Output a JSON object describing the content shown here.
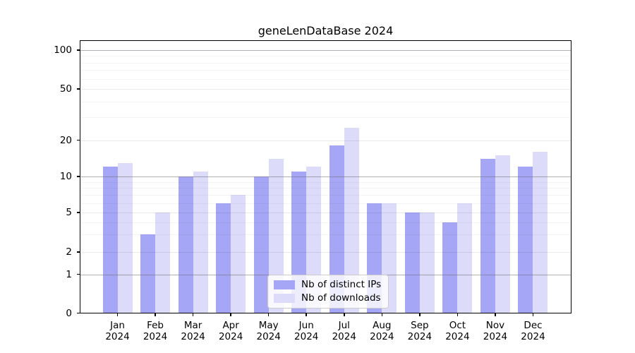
{
  "chart_data": {
    "type": "bar",
    "title": "geneLenDataBase 2024",
    "categories": [
      "Jan 2024",
      "Feb 2024",
      "Mar 2024",
      "Apr 2024",
      "May 2024",
      "Jun 2024",
      "Jul 2024",
      "Aug 2024",
      "Sep 2024",
      "Oct 2024",
      "Nov 2024",
      "Dec 2024"
    ],
    "series": [
      {
        "name": "Nb of distinct IPs",
        "color": "#a6a6f6",
        "values": [
          12,
          3,
          10,
          6,
          10,
          11,
          18,
          6,
          5,
          4,
          14,
          12
        ]
      },
      {
        "name": "Nb of downloads",
        "color": "#dcdcfa",
        "values": [
          13,
          5,
          11,
          7,
          14,
          12,
          25,
          6,
          5,
          6,
          15,
          16
        ]
      }
    ],
    "ylim": [
      0,
      100
    ],
    "yticks": [
      0,
      1,
      2,
      5,
      10,
      20,
      50,
      100
    ],
    "yscale": "log above 1, linear segment 0-1",
    "grid": {
      "decade_lines": [
        1,
        10,
        100
      ],
      "labeled_lines": [
        2,
        5,
        20,
        50
      ],
      "minor_lines": [
        3,
        4,
        6,
        7,
        8,
        9,
        30,
        40,
        60,
        70,
        80,
        90
      ],
      "decade_color": "rgba(110,110,122,0.55)",
      "labeled_color": "rgba(0,0,0,0.085)",
      "minor_color": "rgba(0,0,0,0.042)"
    },
    "legend_position": "inside bottom-center",
    "frame_color": "#000000",
    "background_color": "#ffffff"
  }
}
